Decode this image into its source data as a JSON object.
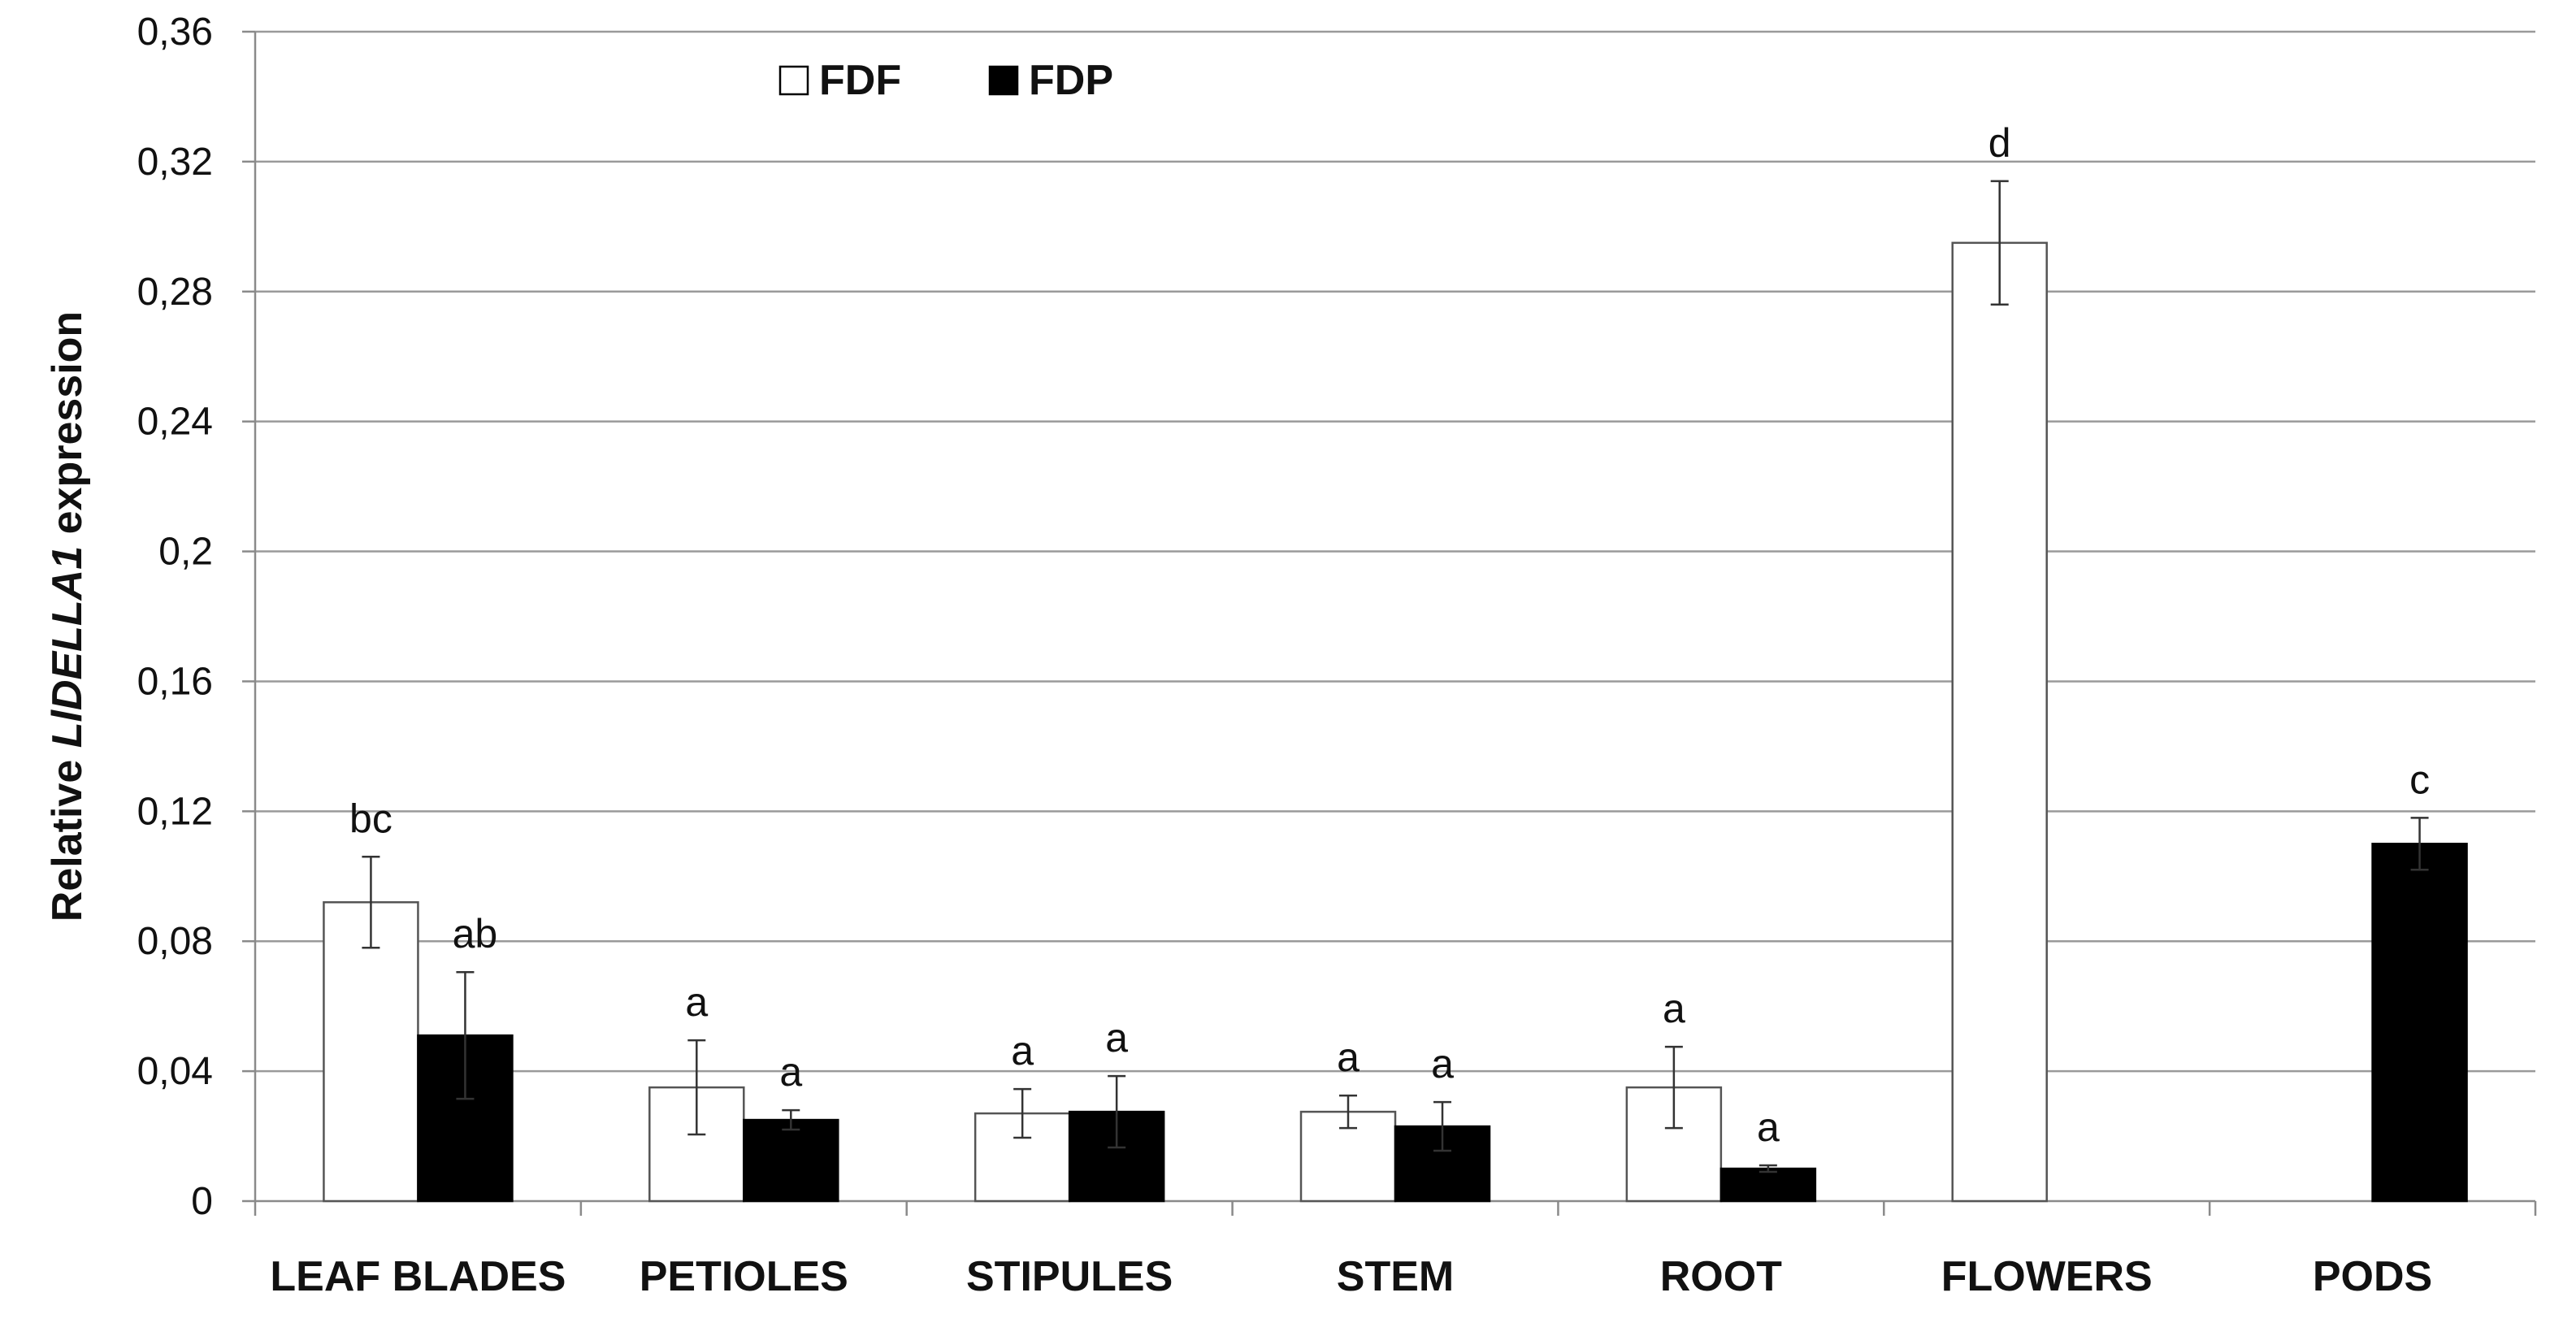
{
  "chart_data": {
    "type": "bar",
    "title": "",
    "ylabel": {
      "prefix": "Relative ",
      "italic": "LlDELLA1",
      "suffix": " expression"
    },
    "xlabel": "",
    "ylim": [
      0,
      0.36
    ],
    "yticks": [
      {
        "value": 0,
        "label": "0"
      },
      {
        "value": 0.04,
        "label": "0,04"
      },
      {
        "value": 0.08,
        "label": "0,08"
      },
      {
        "value": 0.12,
        "label": "0,12"
      },
      {
        "value": 0.16,
        "label": "0,16"
      },
      {
        "value": 0.2,
        "label": "0,2"
      },
      {
        "value": 0.24,
        "label": "0,24"
      },
      {
        "value": 0.28,
        "label": "0,28"
      },
      {
        "value": 0.32,
        "label": "0,32"
      },
      {
        "value": 0.36,
        "label": "0,36"
      }
    ],
    "grid": true,
    "legend_position": "top-left",
    "categories": [
      "LEAF BLADES",
      "PETIOLES",
      "STIPULES",
      "STEM",
      "ROOT",
      "FLOWERS",
      "PODS"
    ],
    "series": [
      {
        "name": "FDF",
        "color": "#ffffff",
        "values": [
          0.092,
          0.035,
          0.027,
          0.0275,
          0.035,
          0.295,
          null
        ],
        "errors": [
          0.014,
          0.0145,
          0.0075,
          0.005,
          0.0125,
          0.019,
          null
        ],
        "labels": [
          "bc",
          "a",
          "a",
          "a",
          "a",
          "d",
          ""
        ]
      },
      {
        "name": "FDP",
        "color": "#000000",
        "values": [
          0.051,
          0.025,
          0.0275,
          0.023,
          0.01,
          null,
          0.11
        ],
        "errors": [
          0.0195,
          0.003,
          0.011,
          0.0075,
          0.001,
          null,
          0.008
        ],
        "labels": [
          "ab",
          "a",
          "a",
          "a",
          "a",
          "",
          "c"
        ]
      }
    ]
  }
}
